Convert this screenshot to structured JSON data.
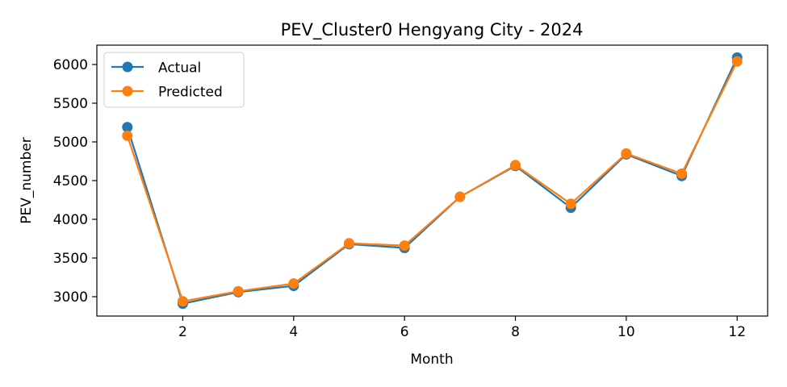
{
  "chart_data": {
    "type": "line",
    "title": "PEV_Cluster0 Hengyang City - 2024",
    "xlabel": "Month",
    "ylabel": "PEV_number",
    "xlim": [
      0.45,
      12.55
    ],
    "ylim": [
      2750,
      6250
    ],
    "xticks": [
      2,
      4,
      6,
      8,
      10,
      12
    ],
    "yticks": [
      3000,
      3500,
      4000,
      4500,
      5000,
      5500,
      6000
    ],
    "grid": false,
    "legend_position": "upper left",
    "x": [
      1,
      2,
      3,
      4,
      5,
      6,
      7,
      8,
      9,
      10,
      11,
      12
    ],
    "series": [
      {
        "name": "Actual",
        "color": "#1f77b4",
        "values": [
          5190,
          2910,
          3060,
          3140,
          3680,
          3630,
          4290,
          4690,
          4150,
          4840,
          4560,
          6090
        ]
      },
      {
        "name": "Predicted",
        "color": "#ff7f0e",
        "values": [
          5080,
          2940,
          3070,
          3170,
          3690,
          3660,
          4290,
          4700,
          4200,
          4850,
          4590,
          6040
        ]
      }
    ]
  }
}
